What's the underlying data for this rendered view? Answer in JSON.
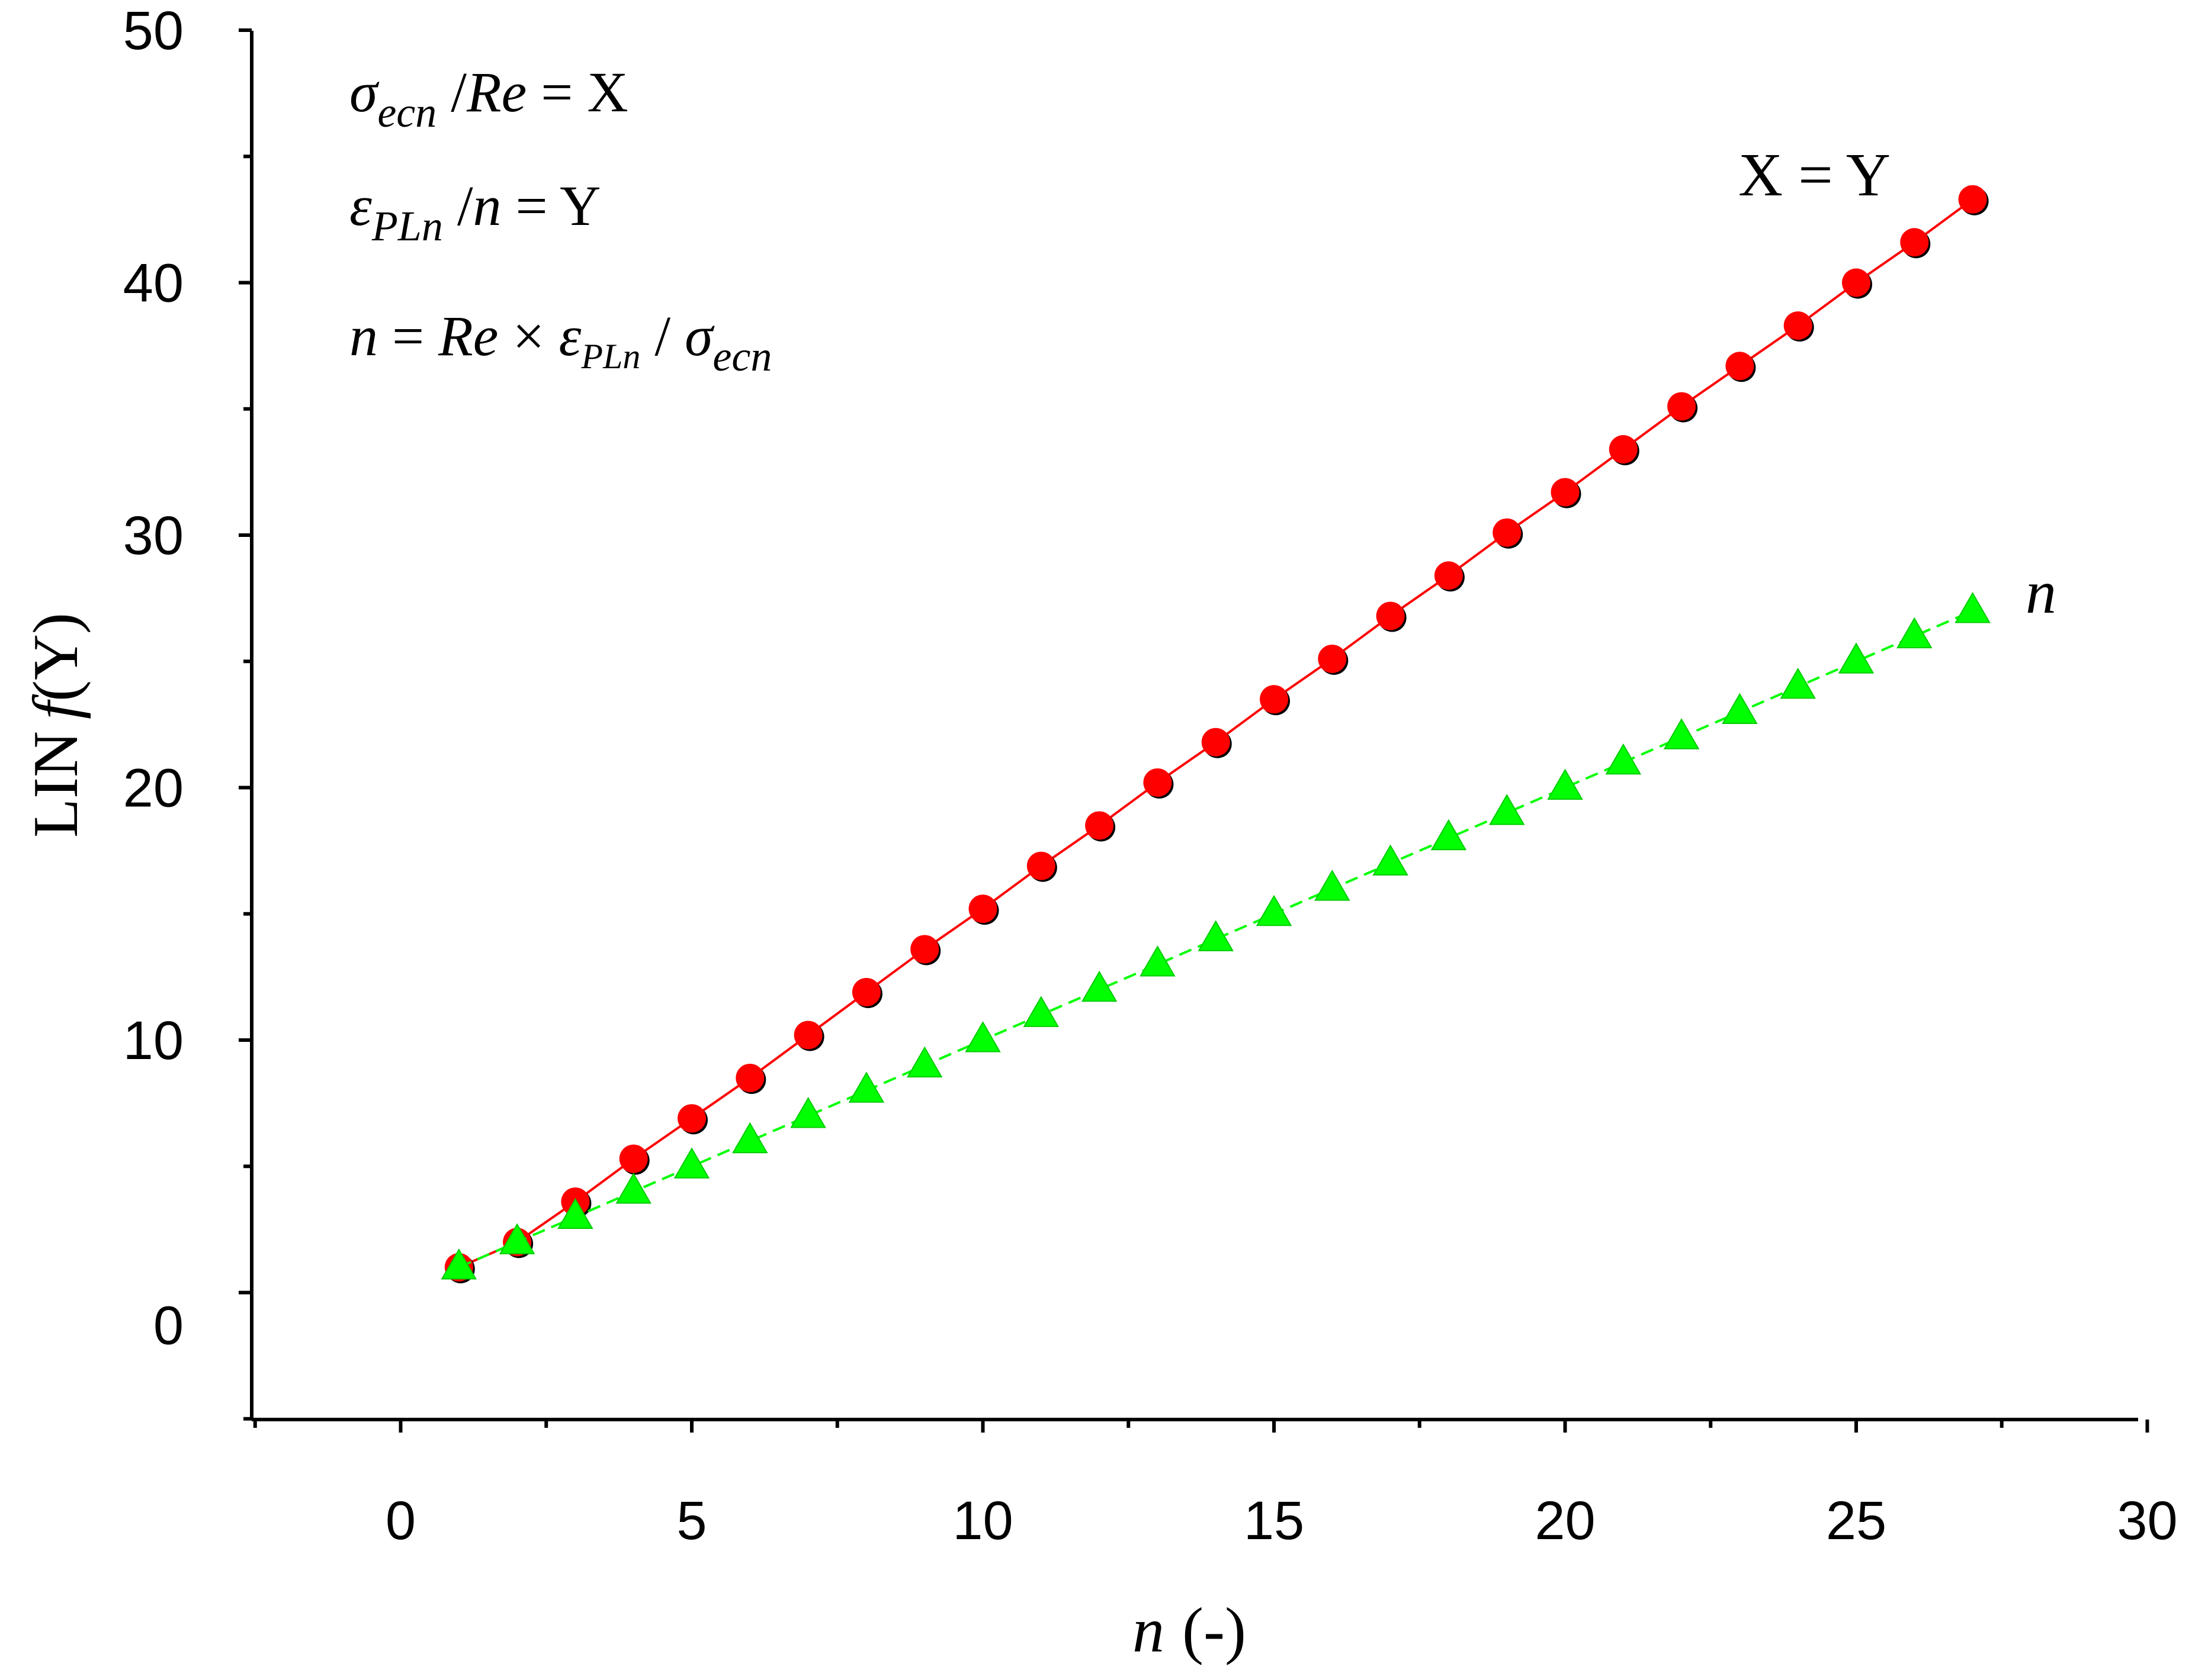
{
  "chart_data": {
    "type": "line",
    "title": "",
    "xlabel": {
      "symbol": "n",
      "unit": "(-)"
    },
    "ylabel": {
      "prefix": "LIN",
      "func": "f",
      "arg": "(Y)"
    },
    "xlim": [
      -2.5,
      30
    ],
    "ylim": [
      -5,
      50
    ],
    "x_ticks": [
      0,
      5,
      10,
      15,
      20,
      25,
      30
    ],
    "x_tick_labels": [
      "0",
      "5",
      "10",
      "15",
      "20",
      "25",
      "30"
    ],
    "y_ticks": [
      0,
      10,
      20,
      30,
      40,
      50
    ],
    "y_tick_labels": [
      "0",
      "10",
      "20",
      "30",
      "40",
      "50"
    ],
    "grid": false,
    "legend": "none",
    "annotations": {
      "eq1": {
        "sym": "σ",
        "sub": "ecn",
        "rest": " /",
        "var": "Re",
        "tail": " = X"
      },
      "eq2": {
        "sym": "ε",
        "sub": "PLn",
        "rest": " /",
        "var": "n",
        "tail": " = Y"
      },
      "eq3": {
        "lhs": "n",
        "eqsign": " = ",
        "re": "Re",
        "times": " × ",
        "eps": "ε",
        "eps_sub": "PLn",
        "slash": " / ",
        "sig": "σ",
        "sig_sub": "ecn"
      },
      "series_label_xy": "X = Y",
      "series_label_n": "n"
    },
    "x": [
      1,
      2,
      3,
      4,
      5,
      6,
      7,
      8,
      9,
      10,
      11,
      12,
      13,
      14,
      15,
      16,
      17,
      18,
      19,
      20,
      21,
      22,
      23,
      24,
      25,
      26,
      27
    ],
    "series": [
      {
        "name": "X = Y",
        "color": "#ff0000",
        "marker": "circle",
        "line": "solid",
        "values": [
          1.0,
          2.0,
          3.6,
          5.3,
          6.9,
          8.5,
          10.2,
          11.9,
          13.6,
          15.2,
          16.9,
          18.5,
          20.2,
          21.8,
          23.5,
          25.1,
          26.8,
          28.4,
          30.1,
          31.7,
          33.4,
          35.1,
          36.7,
          38.3,
          40.0,
          41.6,
          43.3
        ]
      },
      {
        "name": "n",
        "color": "#00ff00",
        "marker": "triangle",
        "line": "dashed",
        "values": [
          1,
          2,
          3,
          4,
          5,
          6,
          7,
          8,
          9,
          10,
          11,
          12,
          13,
          14,
          15,
          16,
          17,
          18,
          19,
          20,
          21,
          22,
          23,
          24,
          25,
          26,
          27
        ]
      }
    ]
  }
}
